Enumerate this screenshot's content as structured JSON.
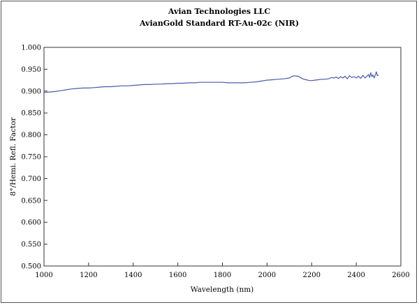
{
  "chart_data": {
    "type": "line",
    "title": "Avian Technologies LLC",
    "subtitle": "AvianGold Standard RT-Au-02c (NIR)",
    "xlabel": "Wavelength (nm)",
    "ylabel": "8°/Hemi. Refl. Factor",
    "xlim": [
      1000,
      2600
    ],
    "ylim": [
      0.5,
      1.0
    ],
    "xticks": [
      1000,
      1200,
      1400,
      1600,
      1800,
      2000,
      2200,
      2400,
      2600
    ],
    "xtick_labels": [
      "1000",
      "1200",
      "1400",
      "1600",
      "1800",
      "2000",
      "2200",
      "2400",
      "2600"
    ],
    "yticks": [
      0.5,
      0.55,
      0.6,
      0.65,
      0.7,
      0.75,
      0.8,
      0.85,
      0.9,
      0.95,
      1.0
    ],
    "ytick_labels": [
      "0.500",
      "0.550",
      "0.600",
      "0.650",
      "0.700",
      "0.750",
      "0.800",
      "0.850",
      "0.900",
      "0.950",
      "1.000"
    ],
    "grid": false,
    "legend": "none",
    "line_color": "#4a5aa8",
    "series": [
      {
        "x": [
          1000,
          1025,
          1050,
          1075,
          1100,
          1125,
          1150,
          1175,
          1200,
          1225,
          1250,
          1275,
          1300,
          1325,
          1350,
          1375,
          1400,
          1425,
          1450,
          1475,
          1500,
          1525,
          1550,
          1575,
          1600,
          1625,
          1650,
          1675,
          1700,
          1725,
          1750,
          1775,
          1800,
          1825,
          1850,
          1875,
          1900,
          1925,
          1950,
          1975,
          2000,
          2025,
          2050,
          2075,
          2100,
          2110,
          2120,
          2130,
          2140,
          2150,
          2160,
          2175,
          2190,
          2200,
          2215,
          2230,
          2245,
          2260,
          2275,
          2290,
          2300,
          2310,
          2320,
          2330,
          2340,
          2350,
          2360,
          2370,
          2380,
          2390,
          2400,
          2410,
          2420,
          2430,
          2440,
          2450,
          2455,
          2460,
          2465,
          2470,
          2475,
          2480,
          2485,
          2490,
          2495,
          2500
        ],
        "values": [
          0.897,
          0.898,
          0.899,
          0.901,
          0.903,
          0.905,
          0.906,
          0.907,
          0.907,
          0.908,
          0.909,
          0.91,
          0.91,
          0.911,
          0.912,
          0.912,
          0.913,
          0.914,
          0.915,
          0.915,
          0.916,
          0.916,
          0.917,
          0.917,
          0.918,
          0.918,
          0.919,
          0.919,
          0.92,
          0.92,
          0.92,
          0.92,
          0.92,
          0.919,
          0.919,
          0.919,
          0.919,
          0.92,
          0.921,
          0.923,
          0.925,
          0.926,
          0.927,
          0.928,
          0.93,
          0.933,
          0.935,
          0.934,
          0.934,
          0.931,
          0.928,
          0.926,
          0.924,
          0.924,
          0.925,
          0.926,
          0.927,
          0.927,
          0.928,
          0.931,
          0.93,
          0.932,
          0.929,
          0.933,
          0.93,
          0.934,
          0.928,
          0.935,
          0.931,
          0.933,
          0.93,
          0.934,
          0.929,
          0.936,
          0.93,
          0.935,
          0.938,
          0.931,
          0.942,
          0.933,
          0.937,
          0.93,
          0.936,
          0.944,
          0.935,
          0.937
        ]
      }
    ]
  }
}
